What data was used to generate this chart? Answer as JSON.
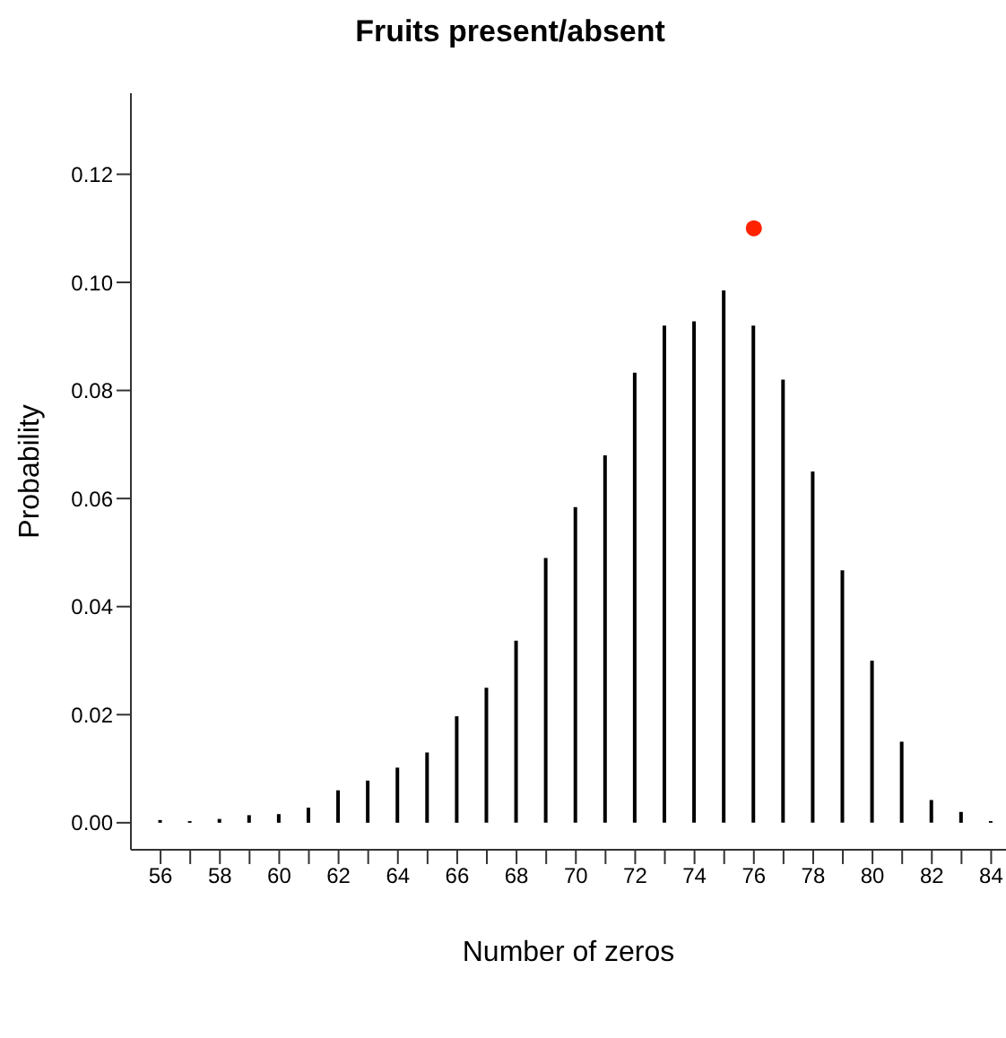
{
  "chart_data": {
    "type": "bar",
    "title": "Fruits present/absent",
    "xlabel": "Number of zeros",
    "ylabel": "Probability",
    "x": [
      56,
      57,
      58,
      59,
      60,
      61,
      62,
      63,
      64,
      65,
      66,
      67,
      68,
      69,
      70,
      71,
      72,
      73,
      74,
      75,
      76,
      77,
      78,
      79,
      80,
      81,
      82,
      83,
      84
    ],
    "series": [
      {
        "color": "#000000",
        "values": [
          0.0005,
          0.0003,
          0.0007,
          0.0014,
          0.0016,
          0.0028,
          0.006,
          0.0078,
          0.0102,
          0.013,
          0.0197,
          0.025,
          0.0337,
          0.049,
          0.0584,
          0.068,
          0.0833,
          0.092,
          0.0928,
          0.0985,
          0.092,
          0.082,
          0.065,
          0.0467,
          0.03,
          0.015,
          0.0042,
          0.002,
          0.0003
        ]
      },
      {
        "type": "scatter",
        "color": "#ff2200",
        "x": [
          76
        ],
        "values": [
          0.11
        ],
        "marker": "circle"
      }
    ],
    "xlim": [
      55,
      84.5
    ],
    "ylim": [
      -0.005,
      0.135
    ],
    "xticks": [
      56,
      {
        "value": 57,
        "label": null
      },
      58,
      {
        "value": 59,
        "label": null
      },
      60,
      {
        "value": 61,
        "label": null
      },
      62,
      {
        "value": 63,
        "label": null
      },
      64,
      {
        "value": 65,
        "label": null
      },
      66,
      {
        "value": 67,
        "label": null
      },
      68,
      {
        "value": 69,
        "label": null
      },
      70,
      {
        "value": 71,
        "label": null
      },
      72,
      {
        "value": 73,
        "label": null
      },
      74,
      {
        "value": 75,
        "label": null
      },
      76,
      {
        "value": 77,
        "label": null
      },
      78,
      {
        "value": 79,
        "label": null
      },
      80,
      {
        "value": 81,
        "label": null
      },
      82,
      {
        "value": 83,
        "label": null
      },
      84
    ],
    "yticks": [
      {
        "value": 0,
        "label": "0.00"
      },
      {
        "value": 0.02,
        "label": "0.02"
      },
      {
        "value": 0.04,
        "label": "0.04"
      },
      {
        "value": 0.06,
        "label": "0.06"
      },
      {
        "value": 0.08,
        "label": "0.08"
      },
      {
        "value": 0.1,
        "label": "0.10"
      },
      {
        "value": 0.12,
        "label": "0.12"
      }
    ],
    "grid": false,
    "legend": false
  }
}
